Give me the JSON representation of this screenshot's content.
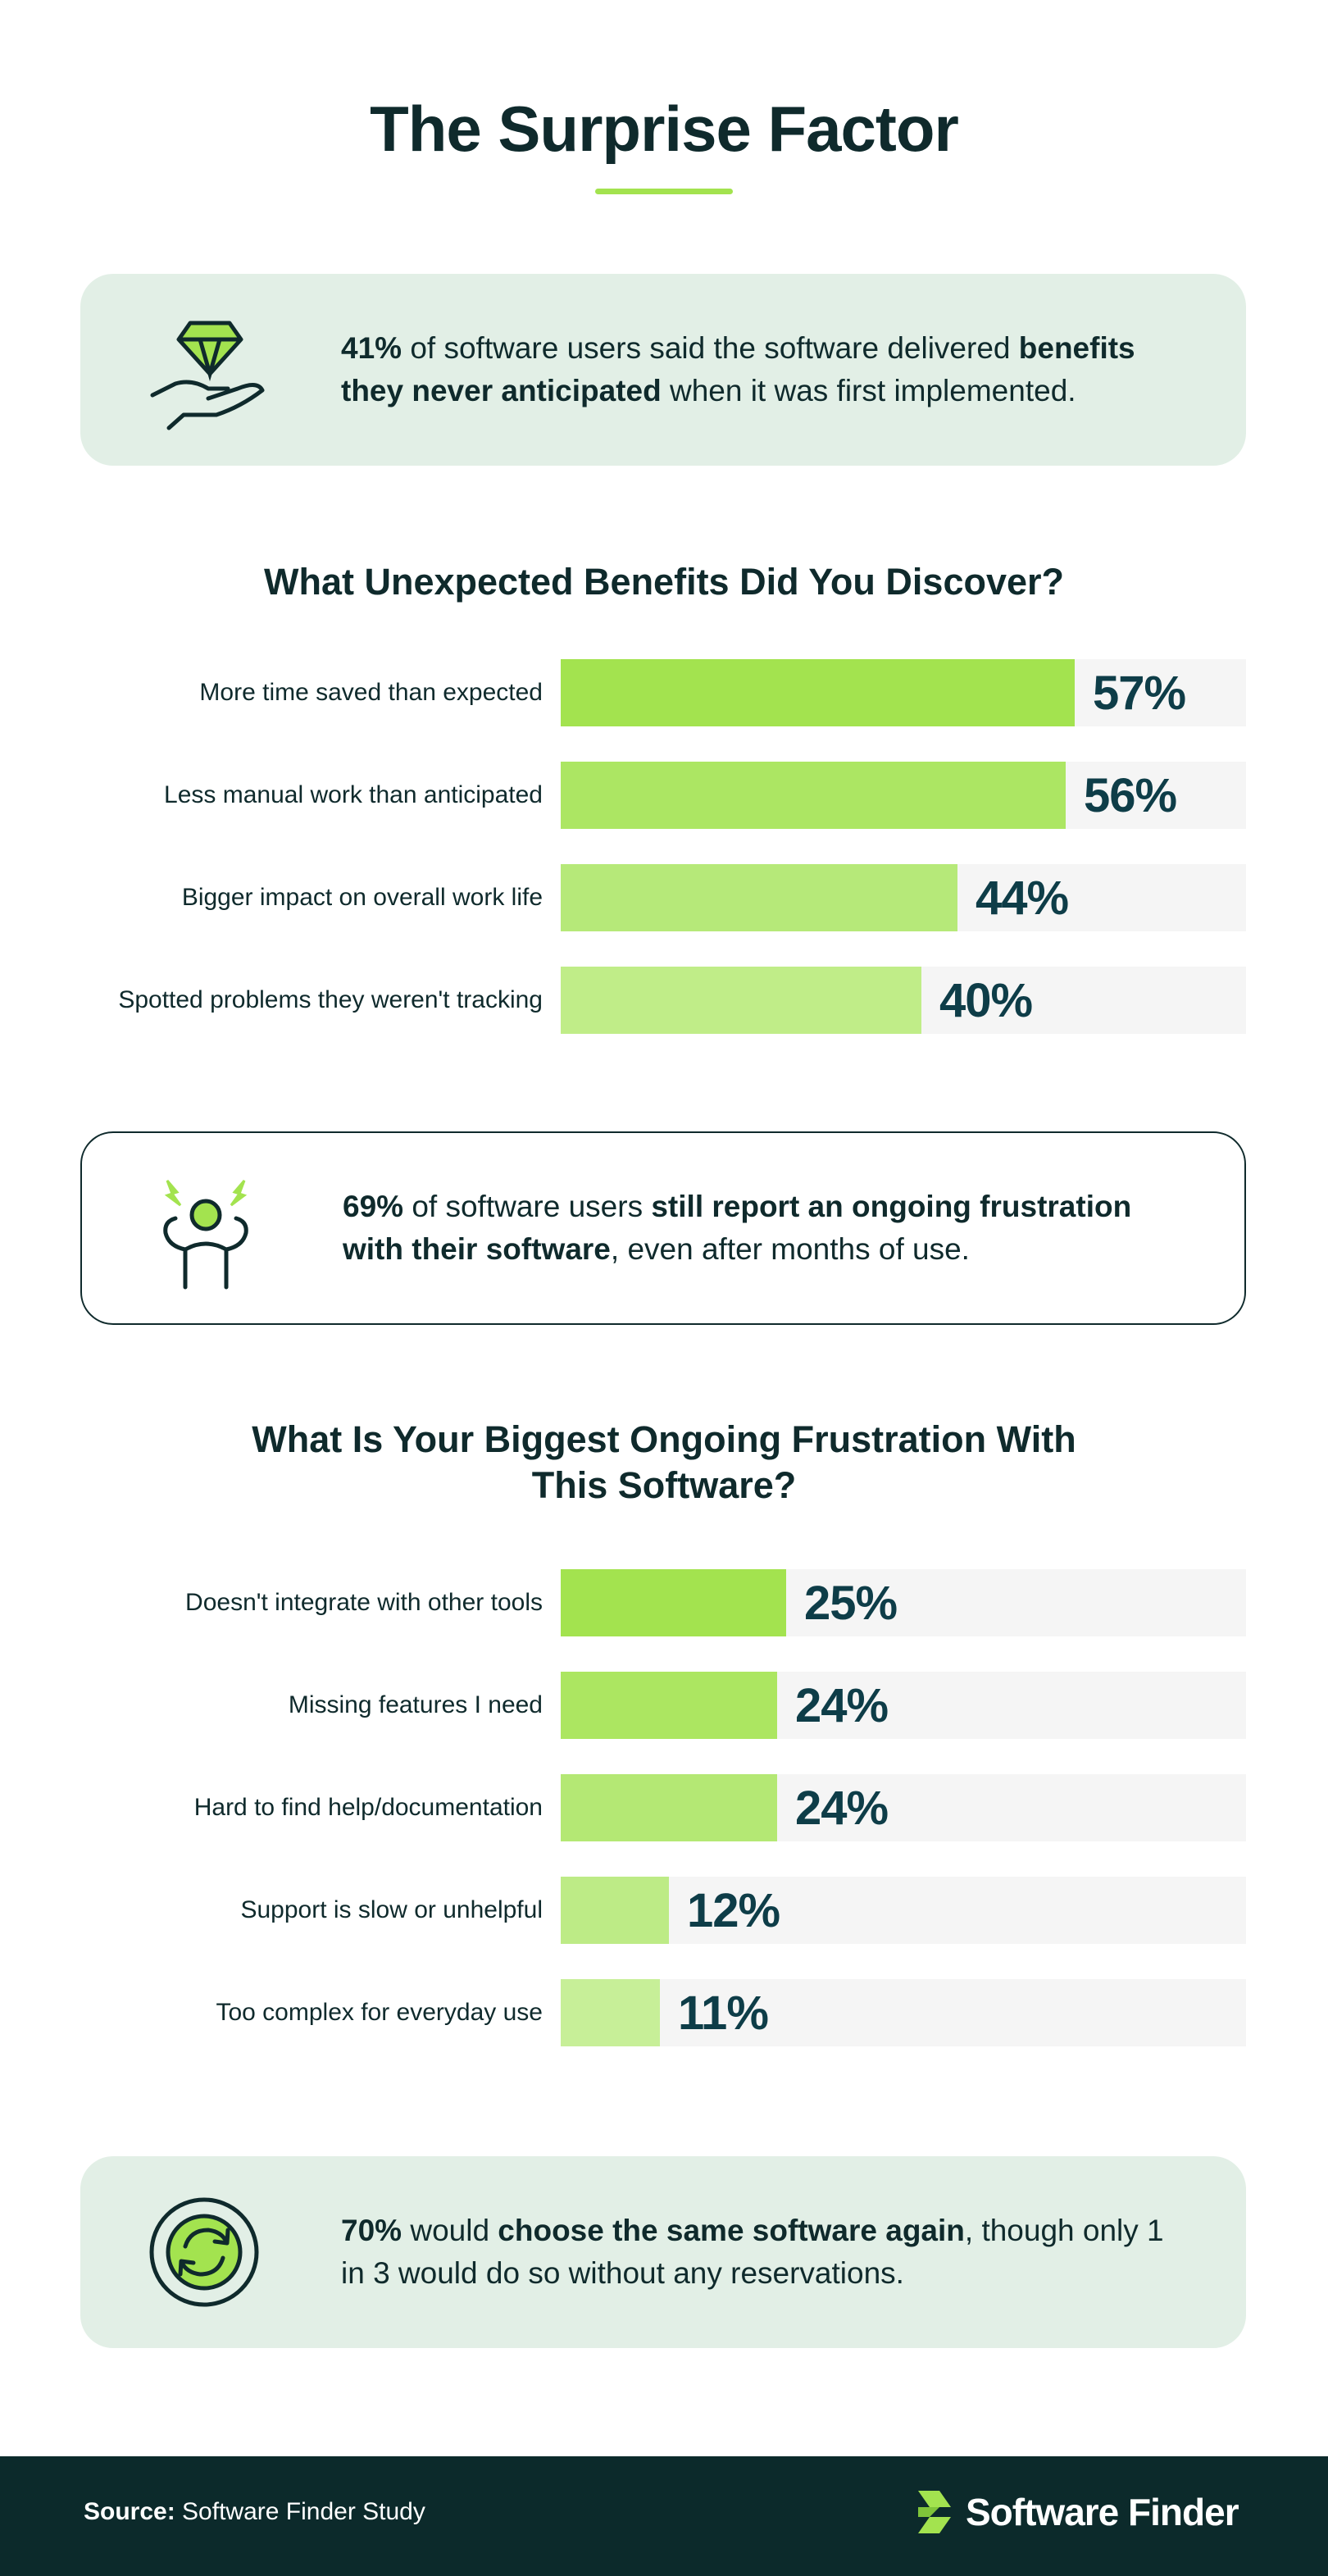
{
  "title": "The Surprise Factor",
  "callouts": [
    {
      "segments": [
        {
          "text": "41%",
          "bold": true
        },
        {
          "text": " of software users said the software delivered ",
          "bold": false
        },
        {
          "text": "benefits they never anticipated",
          "bold": true
        },
        {
          "text": " when it was first implemented.",
          "bold": false
        }
      ]
    },
    {
      "segments": [
        {
          "text": "69%",
          "bold": true
        },
        {
          "text": " of software users ",
          "bold": false
        },
        {
          "text": "still report an ongoing frustration with their software",
          "bold": true
        },
        {
          "text": ", even after months of use.",
          "bold": false
        }
      ]
    },
    {
      "segments": [
        {
          "text": "70%",
          "bold": true
        },
        {
          "text": " would ",
          "bold": false
        },
        {
          "text": "choose the same software again",
          "bold": true
        },
        {
          "text": ", though only 1 in 3 would do so without any reservations.",
          "bold": false
        }
      ]
    }
  ],
  "chart_data": [
    {
      "type": "bar",
      "title": "What Unexpected Benefits Did You Discover?",
      "categories": [
        "More time saved than expected",
        "Less manual work than anticipated",
        "Bigger impact on overall work life",
        "Spotted problems they weren't tracking"
      ],
      "values": [
        57,
        56,
        44,
        40
      ],
      "value_labels": [
        "57%",
        "56%",
        "44%",
        "40%"
      ],
      "colors": [
        "#a3e34f",
        "#ace663",
        "#b6e979",
        "#c0ed88"
      ],
      "xlim": [
        0,
        76
      ]
    },
    {
      "type": "bar",
      "title": "What Is Your Biggest Ongoing Frustration With This Software?",
      "categories": [
        "Doesn't integrate with other tools",
        "Missing features I need",
        "Hard to find help/documentation",
        "Support is slow or unhelpful",
        "Too complex for everyday use"
      ],
      "values": [
        25,
        24,
        24,
        12,
        11
      ],
      "value_labels": [
        "25%",
        "24%",
        "24%",
        "12%",
        "11%"
      ],
      "colors": [
        "#a3e34f",
        "#ace661",
        "#b4e874",
        "#bdeb86",
        "#c7ef98"
      ],
      "xlim": [
        0,
        76
      ]
    }
  ],
  "footer": {
    "source_label": "Source:",
    "source": "Software Finder Study",
    "logo": "Software Finder"
  }
}
